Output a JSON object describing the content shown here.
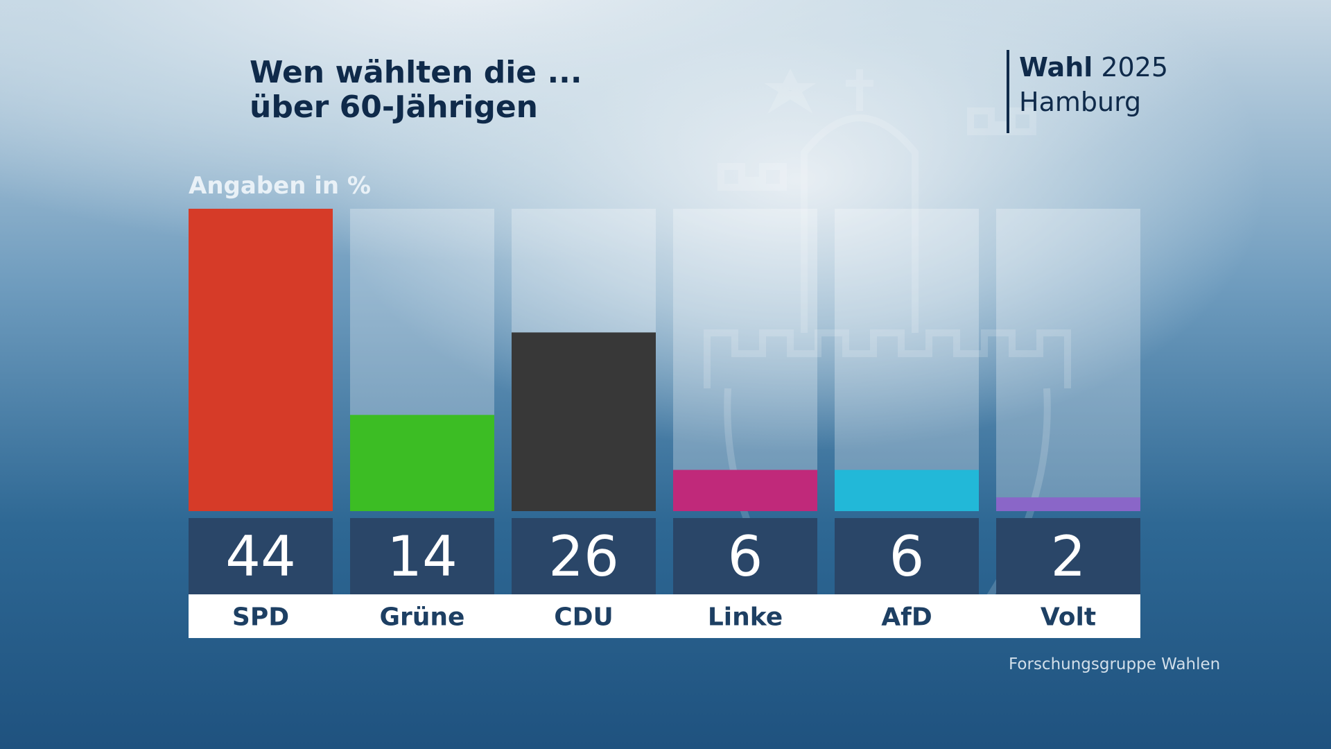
{
  "title": {
    "line1": "Wen wählten die ...",
    "line2": "über 60-Jährigen"
  },
  "brand": {
    "wahl": "Wahl",
    "year": "2025",
    "region": "Hamburg"
  },
  "unit_label": "Angaben in %",
  "source": "Forschungsgruppe Wahlen",
  "chart_data": {
    "type": "bar",
    "categories": [
      "SPD",
      "Grüne",
      "CDU",
      "Linke",
      "AfD",
      "Volt"
    ],
    "values": [
      44,
      14,
      26,
      6,
      6,
      2
    ],
    "colors": [
      "#d63b28",
      "#3cbd24",
      "#383838",
      "#c0297a",
      "#22b8d8",
      "#8a66c8"
    ],
    "ylim": [
      0,
      44
    ],
    "grid": false,
    "value_box_color": "#2a4668",
    "label_color": "#1d3f63"
  }
}
